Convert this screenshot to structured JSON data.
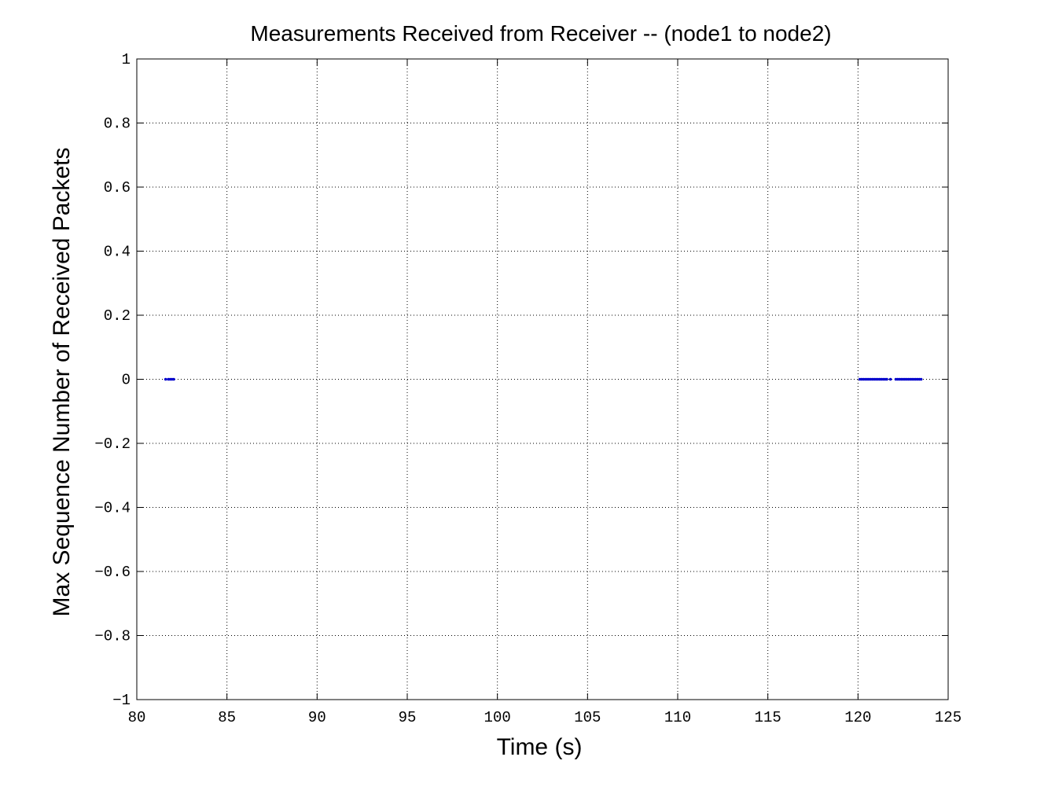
{
  "chart_data": {
    "type": "scatter",
    "title": "Measurements Received from Receiver -- (node1 to node2)",
    "xlabel": "Time (s)",
    "ylabel": "Max Sequence Number of Received Packets",
    "xlim": [
      80,
      125
    ],
    "ylim": [
      -1,
      1
    ],
    "xticks": [
      80,
      85,
      90,
      95,
      100,
      105,
      110,
      115,
      120,
      125
    ],
    "xtick_labels": [
      "80",
      "85",
      "90",
      "95",
      "100",
      "105",
      "110",
      "115",
      "120",
      "125"
    ],
    "yticks": [
      1,
      0.8,
      0.6,
      0.4,
      0.2,
      0,
      -0.2,
      -0.4,
      -0.6,
      -0.8,
      -1
    ],
    "ytick_labels": [
      "1",
      "0.8",
      "0.6",
      "0.4",
      "0.2",
      "0",
      "−0.2",
      "−0.4",
      "−0.6",
      "−0.8",
      "−1"
    ],
    "grid": true,
    "marker": "dot",
    "color": "#0000cc",
    "series": [
      {
        "points": [
          [
            81.6,
            0
          ],
          [
            81.75,
            0
          ],
          [
            81.85,
            0
          ],
          [
            81.95,
            0
          ],
          [
            82.05,
            0
          ],
          [
            120.1,
            0
          ],
          [
            120.2,
            0
          ],
          [
            120.3,
            0
          ],
          [
            120.4,
            0
          ],
          [
            120.5,
            0
          ],
          [
            120.6,
            0
          ],
          [
            120.7,
            0
          ],
          [
            120.8,
            0
          ],
          [
            120.9,
            0
          ],
          [
            121.0,
            0
          ],
          [
            121.1,
            0
          ],
          [
            121.2,
            0
          ],
          [
            121.3,
            0
          ],
          [
            121.4,
            0
          ],
          [
            121.5,
            0
          ],
          [
            121.6,
            0
          ],
          [
            121.8,
            0
          ],
          [
            122.1,
            0
          ],
          [
            122.2,
            0
          ],
          [
            122.3,
            0
          ],
          [
            122.4,
            0
          ],
          [
            122.5,
            0
          ],
          [
            122.6,
            0
          ],
          [
            122.7,
            0
          ],
          [
            122.8,
            0
          ],
          [
            122.9,
            0
          ],
          [
            123.0,
            0
          ],
          [
            123.1,
            0
          ],
          [
            123.2,
            0
          ],
          [
            123.3,
            0
          ],
          [
            123.4,
            0
          ],
          [
            123.5,
            0
          ]
        ]
      }
    ]
  }
}
